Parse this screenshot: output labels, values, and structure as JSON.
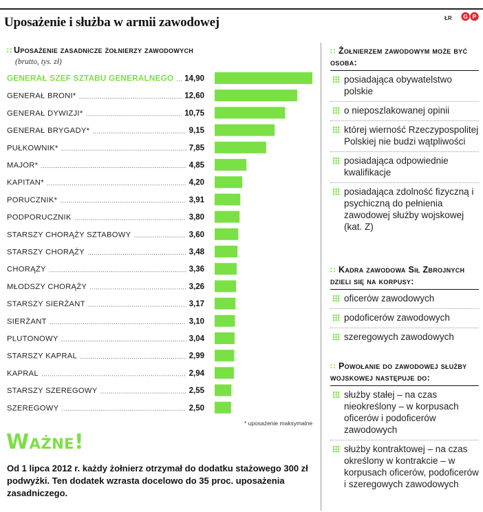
{
  "title": "Uposażenie i służba w armii zawodowej",
  "source": "ŁR",
  "logo_text": "GP",
  "colors": {
    "accent": "#7ae045",
    "text": "#1a1a1a",
    "rule": "#222222"
  },
  "chart_data": {
    "type": "bar",
    "orientation": "horizontal",
    "title": "Uposażenie zasadnicze żołnierzy zawodowych",
    "subtitle": "(brutto, tys. zł)",
    "categories": [
      "GENERAŁ SZEF SZTABU GENERALNEGO",
      "GENERAŁ BRONI*",
      "GENERAŁ DYWIZJI*",
      "GENERAŁ BRYGADY*",
      "PUŁKOWNIK*",
      "MAJOR*",
      "KAPITAN*",
      "PORUCZNIK*",
      "PODPORUCZNIK",
      "STARSZY CHORĄŻY SZTABOWY",
      "STARSZY CHORĄŻY",
      "CHORĄŻY",
      "MŁODSZY CHORĄŻY",
      "STARSZY SIERŻANT",
      "SIERŻANT",
      "PLUTONOWY",
      "STARSZY KAPRAL",
      "KAPRAL",
      "STARSZY SZEREGOWY",
      "SZEREGOWY"
    ],
    "values": [
      14.9,
      12.6,
      10.75,
      9.15,
      7.85,
      4.85,
      4.2,
      3.91,
      3.8,
      3.6,
      3.48,
      3.36,
      3.26,
      3.17,
      3.1,
      3.04,
      2.99,
      2.94,
      2.55,
      2.5
    ],
    "value_labels": [
      "14,90",
      "12,60",
      "10,75",
      "9,15",
      "7,85",
      "4,85",
      "4,20",
      "3,91",
      "3,80",
      "3,60",
      "3,48",
      "3,36",
      "3,26",
      "3,17",
      "3,10",
      "3,04",
      "2,99",
      "2,94",
      "2,55",
      "2,50"
    ],
    "highlight_index": 0,
    "bar_color": "#7ae045",
    "highlight_label_color": "#7ae045",
    "xlim": [
      0,
      14.9
    ],
    "grid": false,
    "note": "* uposażenie maksymalne"
  },
  "important": {
    "heading": "Ważne!",
    "text": "Od 1 lipca 2012 r. każdy żołnierz otrzymał do dodatku stażowego 300 zł podwyżki. Ten dodatek wzrasta docelowo do 35 proc. uposażenia zasadniczego."
  },
  "panels": [
    {
      "heading": "Żołnierzem zawodowym może być osoba:",
      "items": [
        "posiadająca obywatelstwo polskie",
        "o nieposzlakowanej opinii",
        "której wierność Rzeczypospolitej Polskiej nie budzi wątpliwości",
        "posiadająca odpowiednie kwalifikacje",
        "posiadająca zdolność fizyczną i psychiczną do pełnienia zawodowej służby wojskowej (kat. Z)"
      ]
    },
    {
      "heading": "Kadra zawodowa Sił Zbrojnych dzieli się na korpusy:",
      "items": [
        "oficerów zawodowych",
        "podoficerów zawodowych",
        "szeregowych zawodowych"
      ]
    },
    {
      "heading": "Powołanie do zawodowej służby wojskowej następuje do:",
      "items": [
        "służby stałej – na czas nieokreślony – w korpusach oficerów i podoficerów zawodowych",
        "służby kontraktowej – na czas określony w kontrakcie – w korpusach oficerów, podoficerów i szeregowych zawodowych"
      ]
    }
  ]
}
